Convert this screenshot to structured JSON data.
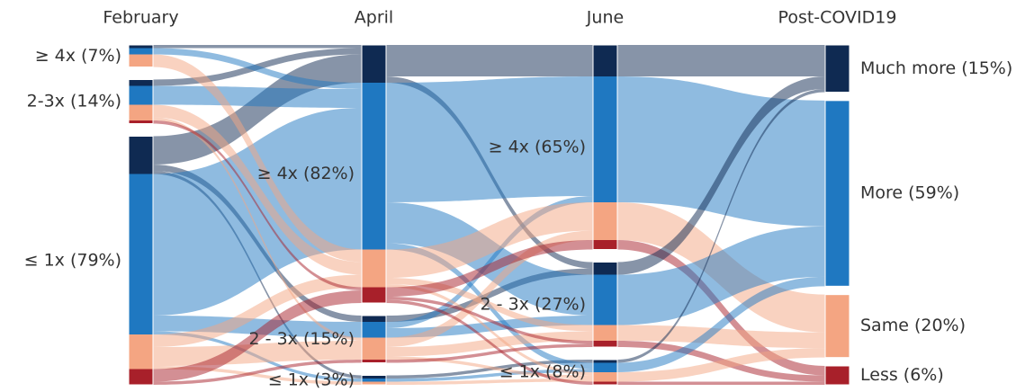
{
  "chart_data": {
    "type": "sankey",
    "colors": [
      "#0f2a52",
      "#1f78c1",
      "#f4a582",
      "#a8202a"
    ],
    "columns": [
      {
        "title": "February",
        "nodes": [
          {
            "label": "≥ 4x (7%)",
            "value": 7,
            "segments": [
              1,
              2,
              4,
              0
            ]
          },
          {
            "label": "2-3x (14%)",
            "value": 14,
            "segments": [
              2,
              6,
              5,
              1
            ]
          },
          {
            "label": "≤ 1x (79%)",
            "value": 79,
            "segments": [
              12,
              51,
              11,
              5
            ]
          }
        ]
      },
      {
        "title": "April",
        "nodes": [
          {
            "label": "≥ 4x (82%)",
            "value": 82,
            "segments": [
              12,
              53,
              12,
              5
            ]
          },
          {
            "label": "2 - 3x (15%)",
            "value": 15,
            "segments": [
              2,
              5,
              7,
              1
            ]
          },
          {
            "label": "≤ 1x (3%)",
            "value": 3,
            "segments": [
              1,
              1,
              1,
              0
            ]
          }
        ]
      },
      {
        "title": "June",
        "nodes": [
          {
            "label": "≥ 4x (65%)",
            "value": 65,
            "segments": [
              10,
              40,
              12,
              3
            ]
          },
          {
            "label": "2 - 3x (27%)",
            "value": 27,
            "segments": [
              4,
              16,
              5,
              2
            ]
          },
          {
            "label": "≤ 1x (8%)",
            "value": 8,
            "segments": [
              1,
              3,
              3,
              1
            ]
          }
        ]
      },
      {
        "title": "Post-COVID19",
        "nodes": [
          {
            "label": "Much more (15%)",
            "value": 15
          },
          {
            "label": "More (59%)",
            "value": 59
          },
          {
            "label": "Same (20%)",
            "value": 20
          },
          {
            "label": "Less (6%)",
            "value": 6
          }
        ]
      }
    ],
    "flows": [
      [
        {
          "from": 0,
          "to": 0,
          "outcome": 0,
          "value": 1
        },
        {
          "from": 1,
          "to": 0,
          "outcome": 0,
          "value": 2
        },
        {
          "from": 2,
          "to": 0,
          "outcome": 0,
          "value": 9
        },
        {
          "from": 2,
          "to": 1,
          "outcome": 0,
          "value": 2
        },
        {
          "from": 2,
          "to": 2,
          "outcome": 0,
          "value": 1
        },
        {
          "from": 0,
          "to": 0,
          "outcome": 1,
          "value": 2
        },
        {
          "from": 1,
          "to": 0,
          "outcome": 1,
          "value": 6
        },
        {
          "from": 2,
          "to": 0,
          "outcome": 1,
          "value": 45
        },
        {
          "from": 2,
          "to": 1,
          "outcome": 1,
          "value": 5
        },
        {
          "from": 2,
          "to": 2,
          "outcome": 1,
          "value": 1
        },
        {
          "from": 0,
          "to": 0,
          "outcome": 2,
          "value": 4
        },
        {
          "from": 1,
          "to": 0,
          "outcome": 2,
          "value": 4
        },
        {
          "from": 1,
          "to": 1,
          "outcome": 2,
          "value": 1
        },
        {
          "from": 2,
          "to": 0,
          "outcome": 2,
          "value": 4
        },
        {
          "from": 2,
          "to": 1,
          "outcome": 2,
          "value": 6
        },
        {
          "from": 2,
          "to": 2,
          "outcome": 2,
          "value": 1
        },
        {
          "from": 1,
          "to": 0,
          "outcome": 3,
          "value": 1
        },
        {
          "from": 2,
          "to": 0,
          "outcome": 3,
          "value": 4
        },
        {
          "from": 2,
          "to": 1,
          "outcome": 3,
          "value": 1
        }
      ],
      [
        {
          "from": 0,
          "to": 0,
          "outcome": 0,
          "value": 10
        },
        {
          "from": 0,
          "to": 1,
          "outcome": 0,
          "value": 2
        },
        {
          "from": 1,
          "to": 1,
          "outcome": 0,
          "value": 2
        },
        {
          "from": 2,
          "to": 2,
          "outcome": 0,
          "value": 1
        },
        {
          "from": 0,
          "to": 0,
          "outcome": 1,
          "value": 38
        },
        {
          "from": 0,
          "to": 1,
          "outcome": 1,
          "value": 13
        },
        {
          "from": 0,
          "to": 2,
          "outcome": 1,
          "value": 2
        },
        {
          "from": 1,
          "to": 0,
          "outcome": 1,
          "value": 2
        },
        {
          "from": 1,
          "to": 1,
          "outcome": 1,
          "value": 3
        },
        {
          "from": 2,
          "to": 2,
          "outcome": 1,
          "value": 1
        },
        {
          "from": 0,
          "to": 0,
          "outcome": 2,
          "value": 9
        },
        {
          "from": 0,
          "to": 1,
          "outcome": 2,
          "value": 2
        },
        {
          "from": 0,
          "to": 2,
          "outcome": 2,
          "value": 1
        },
        {
          "from": 1,
          "to": 0,
          "outcome": 2,
          "value": 3
        },
        {
          "from": 1,
          "to": 1,
          "outcome": 2,
          "value": 3
        },
        {
          "from": 1,
          "to": 2,
          "outcome": 2,
          "value": 1
        },
        {
          "from": 2,
          "to": 2,
          "outcome": 2,
          "value": 1
        },
        {
          "from": 0,
          "to": 0,
          "outcome": 3,
          "value": 3
        },
        {
          "from": 0,
          "to": 1,
          "outcome": 3,
          "value": 1
        },
        {
          "from": 0,
          "to": 2,
          "outcome": 3,
          "value": 1
        },
        {
          "from": 1,
          "to": 1,
          "outcome": 3,
          "value": 1
        }
      ]
    ]
  }
}
